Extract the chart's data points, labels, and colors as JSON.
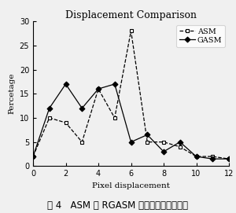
{
  "title": "Displacement Comparison",
  "xlabel": "Pixel displacement",
  "ylabel": "Percetage",
  "xlim": [
    0,
    12
  ],
  "ylim": [
    0,
    30
  ],
  "xticks": [
    0,
    2,
    4,
    6,
    8,
    10,
    12
  ],
  "yticks": [
    0,
    5,
    10,
    15,
    20,
    25,
    30
  ],
  "asm_x": [
    0,
    1,
    2,
    3,
    4,
    5,
    6,
    7,
    8,
    9,
    10,
    11,
    12
  ],
  "asm_y": [
    2,
    10,
    9,
    5,
    16,
    10,
    28,
    5,
    5,
    4,
    2,
    2,
    1.5
  ],
  "gasm_x": [
    0,
    1,
    2,
    3,
    4,
    5,
    6,
    7,
    8,
    9,
    10,
    11,
    12
  ],
  "gasm_y": [
    2,
    12,
    17,
    12,
    16,
    17,
    5,
    6.5,
    3,
    5,
    2,
    1.5,
    1.5
  ],
  "line_color": "#000000",
  "bg_color": "#f0f0f0",
  "legend_asm": "ASM",
  "legend_gasm": "GASM",
  "caption_zh": "图 4   ASM 与 RGASM 方法定位偏移量结果"
}
